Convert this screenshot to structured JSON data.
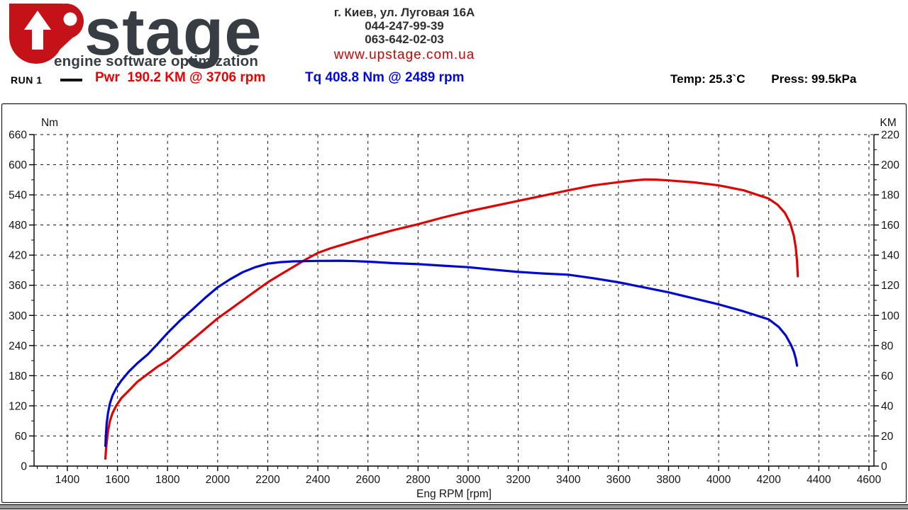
{
  "header": {
    "logo": {
      "brand": "stage",
      "tagline": "engine software optimization"
    },
    "contact": {
      "address": "г. Киев, ул. Луговая 16А",
      "phone1": "044-247-99-39",
      "phone2": "063-642-02-03",
      "website": "www.upstage.com.ua"
    }
  },
  "run_info": {
    "run_label": "RUN 1",
    "power_summary": "Pwr  190.2 KM @ 3706 rpm",
    "torque_summary": "Tq 408.8 Nm @ 2489 rpm",
    "temperature": "Temp: 25.3`C",
    "pressure": "Press: 99.5kPa"
  },
  "colors": {
    "logo_red": "#c41218",
    "logo_dark": "#383d44",
    "url_red": "#cc0000",
    "power_red": "#dd0404",
    "torque_blue": "#0008cf"
  },
  "chart_data": {
    "type": "line",
    "grid": true,
    "x_axis": {
      "label": "Eng RPM [rpm]",
      "range": [
        1267,
        4620
      ],
      "major_ticks": [
        1400,
        1600,
        1800,
        2000,
        2200,
        2400,
        2600,
        2800,
        3000,
        3200,
        3400,
        3600,
        3800,
        4000,
        4200,
        4400,
        4600
      ],
      "minor_step": 40
    },
    "y_left": {
      "label": "Nm",
      "range": [
        0,
        660
      ],
      "major_ticks": [
        0,
        60,
        120,
        180,
        240,
        300,
        360,
        420,
        480,
        540,
        600,
        660
      ],
      "minor_step": 30
    },
    "y_right": {
      "label": "KM",
      "range": [
        0,
        220
      ],
      "major_ticks": [
        0,
        20,
        40,
        60,
        80,
        100,
        120,
        140,
        160,
        180,
        200,
        220
      ],
      "minor_step": 10
    },
    "series": [
      {
        "name": "power",
        "axis": "right",
        "unit": "KM",
        "color": "#dd0404",
        "peak_label": "190.2 KM @ 3706 rpm",
        "points": [
          [
            1552,
            5
          ],
          [
            1554,
            10
          ],
          [
            1557,
            16
          ],
          [
            1562,
            23
          ],
          [
            1570,
            30
          ],
          [
            1580,
            35
          ],
          [
            1595,
            40
          ],
          [
            1615,
            45
          ],
          [
            1645,
            50
          ],
          [
            1680,
            56
          ],
          [
            1720,
            61
          ],
          [
            1760,
            66
          ],
          [
            1800,
            70
          ],
          [
            1850,
            77
          ],
          [
            1900,
            84
          ],
          [
            1950,
            91
          ],
          [
            2000,
            98
          ],
          [
            2050,
            104
          ],
          [
            2100,
            110
          ],
          [
            2150,
            116
          ],
          [
            2200,
            122
          ],
          [
            2250,
            127
          ],
          [
            2300,
            132
          ],
          [
            2350,
            137
          ],
          [
            2400,
            141.5
          ],
          [
            2450,
            144.5
          ],
          [
            2500,
            147
          ],
          [
            2550,
            149.5
          ],
          [
            2600,
            152
          ],
          [
            2700,
            156.5
          ],
          [
            2800,
            160.5
          ],
          [
            2900,
            165
          ],
          [
            3000,
            169
          ],
          [
            3100,
            172.5
          ],
          [
            3200,
            176
          ],
          [
            3300,
            179.5
          ],
          [
            3400,
            183
          ],
          [
            3500,
            186.3
          ],
          [
            3600,
            188.4
          ],
          [
            3650,
            189.4
          ],
          [
            3706,
            190.2
          ],
          [
            3750,
            190.1
          ],
          [
            3800,
            189.6
          ],
          [
            3900,
            188.3
          ],
          [
            4000,
            186.3
          ],
          [
            4100,
            183
          ],
          [
            4200,
            177.5
          ],
          [
            4235,
            173.5
          ],
          [
            4265,
            168
          ],
          [
            4285,
            161.5
          ],
          [
            4300,
            153
          ],
          [
            4308,
            145
          ],
          [
            4313,
            136
          ],
          [
            4316,
            126
          ]
        ]
      },
      {
        "name": "torque",
        "axis": "left",
        "unit": "Nm",
        "color": "#0008cf",
        "peak_label": "408.8 Nm @ 2489 rpm",
        "points": [
          [
            1552,
            40
          ],
          [
            1554,
            62
          ],
          [
            1557,
            85
          ],
          [
            1562,
            105
          ],
          [
            1570,
            125
          ],
          [
            1580,
            140
          ],
          [
            1595,
            155
          ],
          [
            1615,
            170
          ],
          [
            1645,
            188
          ],
          [
            1680,
            205
          ],
          [
            1720,
            222
          ],
          [
            1760,
            243
          ],
          [
            1800,
            265
          ],
          [
            1850,
            290
          ],
          [
            1900,
            312
          ],
          [
            1950,
            335
          ],
          [
            2000,
            356
          ],
          [
            2050,
            372
          ],
          [
            2100,
            386
          ],
          [
            2150,
            396
          ],
          [
            2200,
            403
          ],
          [
            2250,
            406
          ],
          [
            2300,
            407.5
          ],
          [
            2400,
            408.5
          ],
          [
            2489,
            408.8
          ],
          [
            2550,
            408
          ],
          [
            2600,
            407
          ],
          [
            2700,
            404
          ],
          [
            2800,
            402
          ],
          [
            2900,
            399
          ],
          [
            3000,
            396
          ],
          [
            3100,
            391
          ],
          [
            3200,
            386.5
          ],
          [
            3300,
            383.5
          ],
          [
            3400,
            381
          ],
          [
            3500,
            374
          ],
          [
            3600,
            366
          ],
          [
            3700,
            356
          ],
          [
            3800,
            346
          ],
          [
            3900,
            334
          ],
          [
            4000,
            322
          ],
          [
            4100,
            308
          ],
          [
            4200,
            292
          ],
          [
            4240,
            277
          ],
          [
            4268,
            260
          ],
          [
            4288,
            242
          ],
          [
            4300,
            228
          ],
          [
            4308,
            214
          ],
          [
            4313,
            200
          ]
        ]
      }
    ]
  }
}
